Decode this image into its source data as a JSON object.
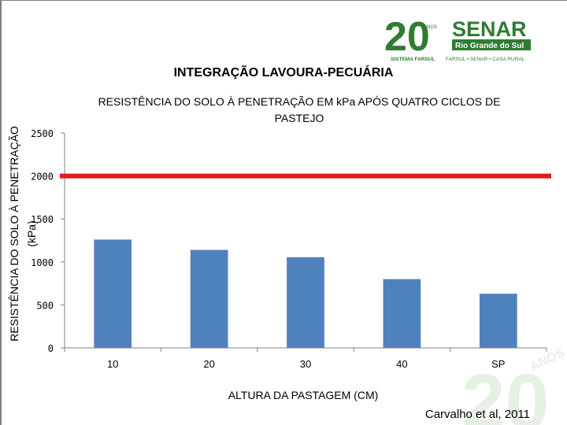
{
  "page": {
    "title": "INTEGRAÇÃO LAVOURA-PECUÁRIA",
    "citation": "Carvalho et al, 2011"
  },
  "logo": {
    "anniversary_number": "20",
    "anniversary_word": "ANOS",
    "brand": "SENAR",
    "region": "Rio Grande do Sul",
    "tagline_left": "SISTEMA FARSUL",
    "tagline_right": "FARSUL • SENAR • CASA RURAL",
    "color": "#2e7d32"
  },
  "watermark": {
    "number": "20",
    "word": "ANOS",
    "color": "#c9dfc4"
  },
  "chart_data": {
    "type": "bar",
    "title": "RESISTÊNCIA DO SOLO À PENETRAÇÃO EM kPa APÓS QUATRO CICLOS DE PASTEJO",
    "xlabel": "ALTURA DA PASTAGEM (CM)",
    "ylabel": "RESISTÊNCIA DO SOLO À PENETRAÇÃO (kPa)",
    "categories": [
      "10",
      "20",
      "30",
      "40",
      "SP"
    ],
    "values": [
      1260,
      1140,
      1055,
      800,
      630
    ],
    "ylim": [
      0,
      2500
    ],
    "yticks": [
      0,
      500,
      1000,
      1500,
      2000,
      2500
    ],
    "reference_line": 2000,
    "bar_color": "#4f81bd",
    "reference_color": "#e31b1b",
    "grid": false
  }
}
